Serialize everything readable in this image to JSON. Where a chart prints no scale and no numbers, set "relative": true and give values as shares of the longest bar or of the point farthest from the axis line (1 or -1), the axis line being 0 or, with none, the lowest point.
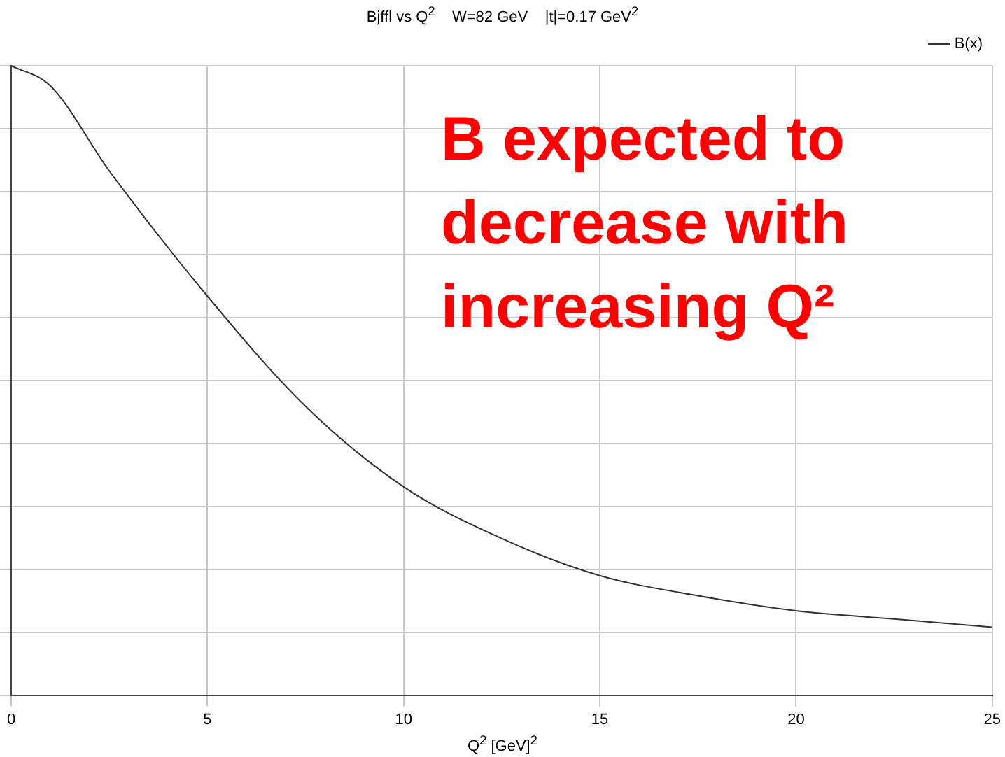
{
  "chart_data": {
    "type": "line",
    "title": "Bjffl vs Q$^{2}$    W=82 GeV    |t|=0.17 GeV$^{2}$",
    "xlabel": "Q$^{2}$ [GeV]$^{2}$",
    "annotations": [
      "B expected to decrease with increasing Q²"
    ],
    "x": [
      0,
      1,
      2.5,
      5,
      7.5,
      10,
      12.5,
      15,
      17.5,
      20,
      22.5,
      25
    ],
    "series": [
      {
        "name": "B(x)",
        "color": "#333333",
        "values": [
          1,
          0.968,
          0.833,
          0.634,
          0.459,
          0.331,
          0.249,
          0.19,
          0.158,
          0.134,
          0.121,
          0.108
        ]
      }
    ],
    "relative": true,
    "xlim": [
      0,
      25
    ],
    "xticks": [
      0,
      5,
      10,
      15,
      20,
      25
    ],
    "grid": true,
    "legend": "top right",
    "marker": "none",
    "line_style": "solid"
  }
}
